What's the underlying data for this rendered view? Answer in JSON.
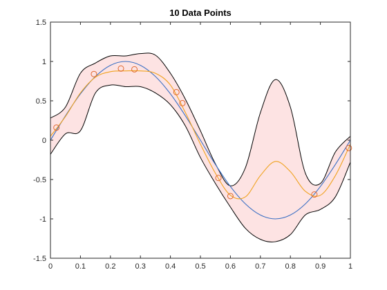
{
  "chart_data": {
    "type": "line",
    "title": "10 Data Points",
    "xlabel": "",
    "ylabel": "",
    "xlim": [
      0,
      1
    ],
    "ylim": [
      -1.5,
      1.5
    ],
    "xticks": [
      "0",
      "0.1",
      "0.2",
      "0.3",
      "0.4",
      "0.5",
      "0.6",
      "0.7",
      "0.8",
      "0.9",
      "1"
    ],
    "yticks": [
      "-1.5",
      "-1",
      "-0.5",
      "0",
      "0.5",
      "1",
      "1.5"
    ],
    "grid": false,
    "legend": false,
    "colors": {
      "true_function": "#3a6fc4",
      "posterior_mean": "#f0a21e",
      "confidence_band_fill": "#fde3e3",
      "confidence_band_edge": "#000000",
      "data_points": "#e0662b"
    },
    "series": [
      {
        "type": "line",
        "x": [
          0,
          0.05,
          0.1,
          0.15,
          0.2,
          0.25,
          0.3,
          0.35,
          0.4,
          0.45,
          0.5,
          0.55,
          0.6,
          0.65,
          0.7,
          0.75,
          0.8,
          0.85,
          0.9,
          0.95,
          1
        ],
        "values": [
          0,
          0.309,
          0.588,
          0.809,
          0.951,
          1,
          0.951,
          0.809,
          0.588,
          0.309,
          0,
          -0.309,
          -0.588,
          -0.809,
          -0.951,
          -1,
          -0.951,
          -0.809,
          -0.588,
          -0.309,
          0
        ]
      },
      {
        "type": "line",
        "x": [
          0,
          0.05,
          0.1,
          0.15,
          0.2,
          0.25,
          0.3,
          0.35,
          0.4,
          0.45,
          0.5,
          0.55,
          0.6,
          0.65,
          0.7,
          0.75,
          0.8,
          0.85,
          0.9,
          0.95,
          1
        ],
        "values": [
          0.05,
          0.3,
          0.6,
          0.8,
          0.87,
          0.88,
          0.88,
          0.85,
          0.7,
          0.35,
          -0.05,
          -0.42,
          -0.7,
          -0.72,
          -0.45,
          -0.27,
          -0.4,
          -0.65,
          -0.7,
          -0.45,
          -0.05
        ]
      },
      {
        "type": "band",
        "x": [
          0,
          0.05,
          0.1,
          0.15,
          0.2,
          0.25,
          0.3,
          0.35,
          0.4,
          0.45,
          0.5,
          0.55,
          0.6,
          0.65,
          0.7,
          0.75,
          0.8,
          0.85,
          0.9,
          0.95,
          1
        ],
        "upper": [
          0.28,
          0.42,
          0.85,
          0.98,
          1.07,
          1.07,
          1.1,
          1.08,
          0.85,
          0.52,
          0.12,
          -0.3,
          -0.58,
          -0.35,
          0.35,
          0.77,
          0.42,
          -0.42,
          -0.55,
          -0.15,
          0.05
        ],
        "lower": [
          -0.18,
          0.08,
          0.12,
          0.6,
          0.7,
          0.68,
          0.68,
          0.6,
          0.45,
          0.18,
          -0.22,
          -0.55,
          -0.85,
          -1.12,
          -1.26,
          -1.29,
          -1.2,
          -0.95,
          -0.88,
          -0.72,
          -0.28
        ]
      },
      {
        "type": "scatter",
        "x": [
          0.02,
          0.145,
          0.235,
          0.28,
          0.42,
          0.44,
          0.56,
          0.6,
          0.88,
          0.995
        ],
        "values": [
          0.16,
          0.84,
          0.91,
          0.9,
          0.61,
          0.47,
          -0.48,
          -0.71,
          -0.69,
          -0.1
        ]
      }
    ]
  }
}
